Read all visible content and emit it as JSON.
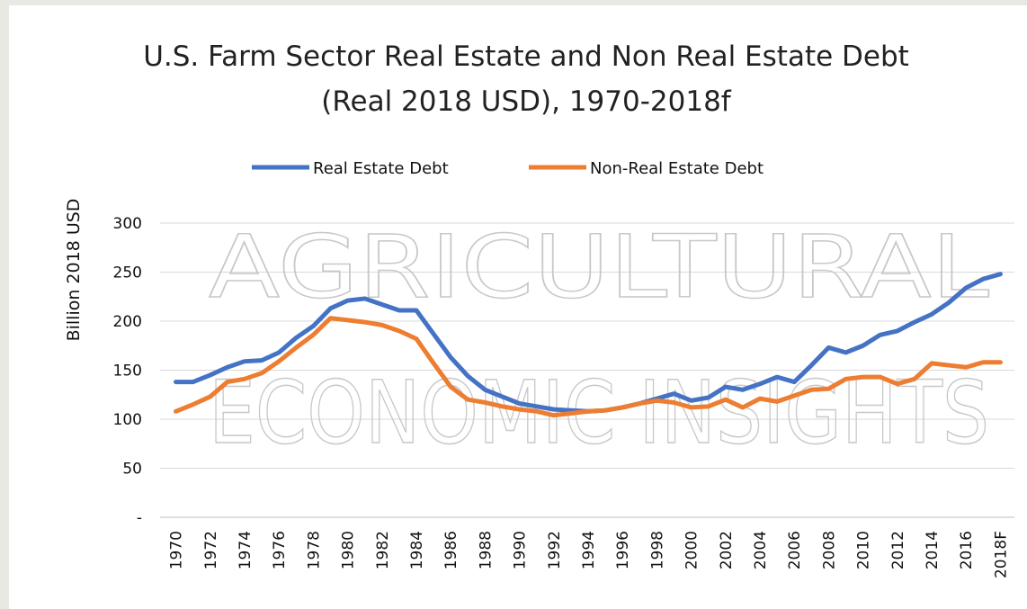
{
  "chart_data": {
    "type": "line",
    "title": "U.S. Farm Sector Real Estate and Non Real Estate Debt (Real 2018 USD), 1970-2018f",
    "y_label": "Billion 2018 USD",
    "watermark": [
      "AGRICULTURAL",
      "ECONOMIC INSIGHTS"
    ],
    "categories": [
      "1970",
      null,
      "1972",
      null,
      "1974",
      null,
      "1976",
      null,
      "1978",
      null,
      "1980",
      null,
      "1982",
      null,
      "1984",
      null,
      "1986",
      null,
      "1988",
      null,
      "1990",
      null,
      "1992",
      null,
      "1994",
      null,
      "1996",
      null,
      "1998",
      null,
      "2000",
      null,
      "2002",
      null,
      "2004",
      null,
      "2006",
      null,
      "2008",
      null,
      "2010",
      null,
      "2012",
      null,
      "2014",
      null,
      "2016",
      null,
      "2018F"
    ],
    "series": [
      {
        "name": "Real Estate Debt",
        "color": "#4472c4",
        "values": [
          138,
          138,
          145,
          153,
          159,
          160,
          168,
          183,
          195,
          213,
          221,
          223,
          217,
          211,
          211,
          187,
          163,
          144,
          130,
          123,
          116,
          113,
          110,
          109,
          108,
          109,
          112,
          116,
          121,
          126,
          119,
          122,
          133,
          130,
          136,
          143,
          138,
          155,
          173,
          168,
          175,
          186,
          190,
          199,
          207,
          219,
          234,
          243,
          248
        ]
      },
      {
        "name": "Non-Real Estate Debt",
        "color": "#ed7d31",
        "values": [
          108,
          115,
          123,
          138,
          141,
          147,
          159,
          173,
          186,
          203,
          201,
          199,
          196,
          190,
          182,
          157,
          133,
          120,
          117,
          113,
          110,
          108,
          104,
          106,
          108,
          109,
          112,
          116,
          119,
          117,
          112,
          113,
          120,
          112,
          121,
          118,
          124,
          130,
          131,
          141,
          143,
          143,
          136,
          141,
          157,
          155,
          153,
          158,
          158
        ]
      }
    ],
    "ylim": [
      0,
      300
    ],
    "yticks": [
      {
        "value": 0,
        "label": "-"
      },
      50,
      100,
      150,
      200,
      250,
      300
    ],
    "grid": true,
    "legend": "top"
  }
}
